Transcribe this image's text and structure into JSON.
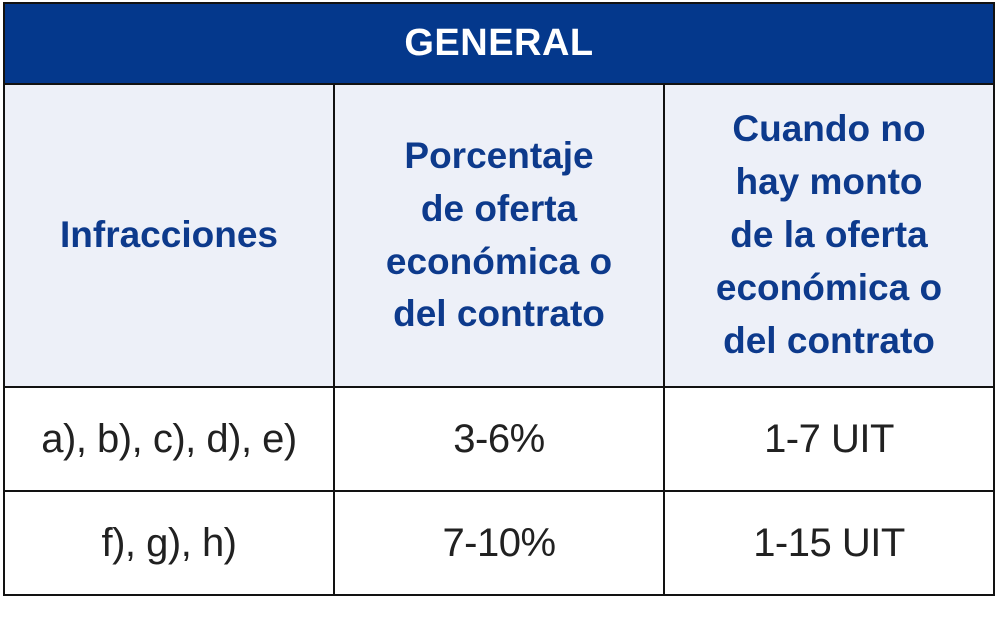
{
  "table": {
    "title": "GENERAL",
    "columns": [
      "Infracciones",
      "Porcentaje\nde oferta\neconómica o\ndel contrato",
      "Cuando no\nhay monto\nde la oferta\neconómica o\ndel contrato"
    ],
    "rows": [
      [
        "a), b), c), d), e)",
        "3-6%",
        "1-7 UIT"
      ],
      [
        "f), g), h)",
        "7-10%",
        "1-15 UIT"
      ]
    ],
    "colors": {
      "banner_background": "#04388c",
      "banner_text": "#ffffff",
      "header_background": "#edf0f8",
      "header_text": "#0d3a8c",
      "body_background": "#ffffff",
      "body_text": "#212121",
      "border": "#121212"
    }
  },
  "chart_data": {
    "type": "table",
    "title": "GENERAL",
    "columns": [
      "Infracciones",
      "Porcentaje de oferta económica o del contrato",
      "Cuando no hay monto de la oferta económica o del contrato"
    ],
    "rows": [
      [
        "a), b), c), d), e)",
        "3-6%",
        "1-7 UIT"
      ],
      [
        "f), g), h)",
        "7-10%",
        "1-15 UIT"
      ]
    ]
  }
}
